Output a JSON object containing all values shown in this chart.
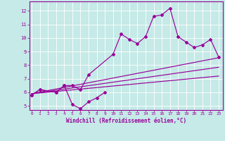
{
  "xlabel": "Windchill (Refroidissement éolien,°C)",
  "bg_color": "#c5eae7",
  "line_color": "#990099",
  "xticks": [
    0,
    1,
    2,
    3,
    4,
    5,
    6,
    7,
    8,
    9,
    10,
    11,
    12,
    13,
    14,
    15,
    16,
    17,
    18,
    19,
    20,
    21,
    22,
    23
  ],
  "yticks": [
    5,
    6,
    7,
    8,
    9,
    10,
    11,
    12
  ],
  "ylim": [
    4.7,
    12.7
  ],
  "xlim": [
    -0.3,
    23.5
  ],
  "main_x": [
    0,
    1,
    3,
    4,
    5,
    6,
    7,
    10,
    11,
    12,
    13,
    14,
    15,
    16,
    17,
    18,
    19,
    20,
    21,
    22,
    23
  ],
  "main_y": [
    5.8,
    6.2,
    6.0,
    6.5,
    6.5,
    6.2,
    7.3,
    8.8,
    10.3,
    9.9,
    9.6,
    10.1,
    11.6,
    11.7,
    12.2,
    10.1,
    9.7,
    9.3,
    9.5,
    9.9,
    8.6
  ],
  "bot_x": [
    0,
    1,
    3,
    4,
    5,
    6,
    7,
    8,
    9
  ],
  "bot_y": [
    5.8,
    6.2,
    6.0,
    6.5,
    5.1,
    4.8,
    5.3,
    5.6,
    6.0
  ],
  "trend_lines": [
    {
      "x": [
        0,
        23
      ],
      "y": [
        5.9,
        8.55
      ]
    },
    {
      "x": [
        0,
        23
      ],
      "y": [
        5.9,
        7.85
      ]
    },
    {
      "x": [
        0,
        23
      ],
      "y": [
        5.9,
        7.2
      ]
    }
  ]
}
